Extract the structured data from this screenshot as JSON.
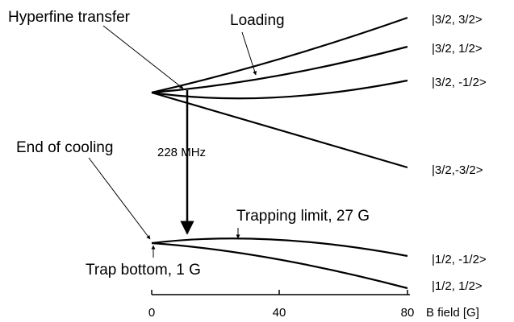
{
  "annotations": {
    "hyperfine_transfer": "Hyperfine transfer",
    "loading": "Loading",
    "end_of_cooling": "End of cooling",
    "frequency": "228 MHz",
    "trapping_limit": "Trapping limit, 27 G",
    "trap_bottom": "Trap bottom, 1 G"
  },
  "states": [
    "|3/2, 3/2>",
    "|3/2, 1/2>",
    "|3/2, -1/2>",
    "|3/2,-3/2>",
    "|1/2, -1/2>",
    "|1/2, 1/2>"
  ],
  "axis": {
    "label": "B field [G]",
    "ticks": [
      "0",
      "40",
      "80"
    ]
  }
}
